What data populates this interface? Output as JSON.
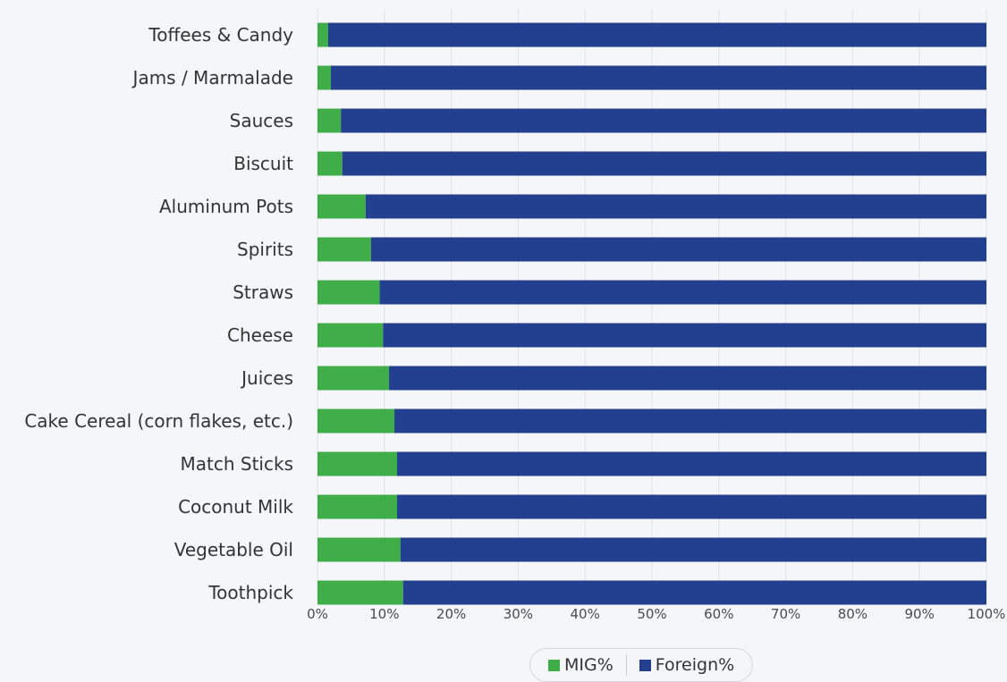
{
  "chart_data": {
    "type": "bar",
    "orientation": "horizontal",
    "stacked": "percent",
    "categories": [
      "Toffees & Candy",
      "Jams / Marmalade",
      "Sauces",
      "Biscuit",
      "Aluminum Pots",
      "Spirits",
      "Straws",
      "Cheese",
      "Juices",
      "Cake Cereal (corn flakes, etc.)",
      "Match Sticks",
      "Coconut Milk",
      "Vegetable Oil",
      "Toothpick"
    ],
    "series": [
      {
        "name": "MIG%",
        "color": "#3fae49",
        "values": [
          1.6,
          2.0,
          3.5,
          3.7,
          7.2,
          8.0,
          9.3,
          9.8,
          10.7,
          11.5,
          11.9,
          11.9,
          12.4,
          12.8
        ]
      },
      {
        "name": "Foreign%",
        "color": "#233f8f",
        "values": [
          98.4,
          98.0,
          96.5,
          96.3,
          92.8,
          92.0,
          90.7,
          90.2,
          89.3,
          88.5,
          88.1,
          88.1,
          87.6,
          87.2
        ]
      }
    ],
    "xlim": [
      0,
      100
    ],
    "x_ticks": [
      "0%",
      "10%",
      "20%",
      "30%",
      "40%",
      "50%",
      "60%",
      "70%",
      "80%",
      "90%",
      "100%"
    ],
    "grid": true,
    "legend_position": "bottom-center"
  }
}
